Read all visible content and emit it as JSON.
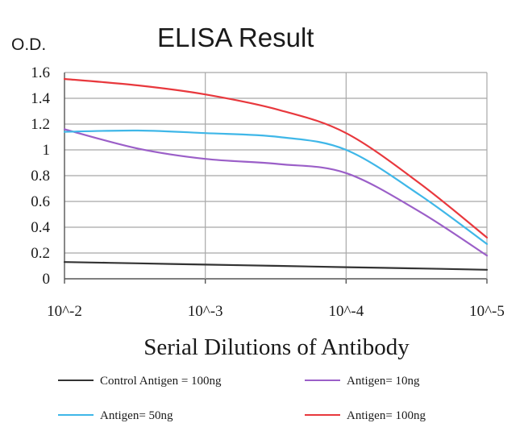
{
  "chart_data": {
    "type": "line",
    "title": "ELISA Result",
    "ylabel": "O.D.",
    "xlabel": "Serial Dilutions of Antibody",
    "x_tick_labels": [
      "10^-2",
      "10^-3",
      "10^-4",
      "10^-5"
    ],
    "y_tick_labels": [
      "0",
      "0.2",
      "0.4",
      "0.6",
      "0.8",
      "1",
      "1.2",
      "1.4",
      "1.6"
    ],
    "ylim": [
      0,
      1.6
    ],
    "grid": true,
    "legend_position": "bottom",
    "series": [
      {
        "name": "Control Antigen = 100ng",
        "color": "#333333",
        "x": [
          0.01,
          0.003,
          0.001,
          0.0003,
          0.0001,
          3e-05,
          1e-05
        ],
        "y": [
          0.13,
          0.12,
          0.11,
          0.1,
          0.09,
          0.08,
          0.07
        ]
      },
      {
        "name": "Antigen= 10ng",
        "color": "#9b5fc8",
        "x": [
          0.01,
          0.003,
          0.001,
          0.0003,
          0.0001,
          3e-05,
          1e-05
        ],
        "y": [
          1.16,
          1.01,
          0.93,
          0.89,
          0.82,
          0.52,
          0.18
        ]
      },
      {
        "name": "Antigen= 50ng",
        "color": "#3fb7e8",
        "x": [
          0.01,
          0.003,
          0.001,
          0.0003,
          0.0001,
          3e-05,
          1e-05
        ],
        "y": [
          1.14,
          1.15,
          1.13,
          1.1,
          1.0,
          0.65,
          0.27
        ]
      },
      {
        "name": "Antigen= 100ng",
        "color": "#e8383d",
        "x": [
          0.01,
          0.003,
          0.001,
          0.0003,
          0.0001,
          3e-05,
          1e-05
        ],
        "y": [
          1.55,
          1.5,
          1.43,
          1.31,
          1.13,
          0.74,
          0.32
        ]
      }
    ]
  }
}
